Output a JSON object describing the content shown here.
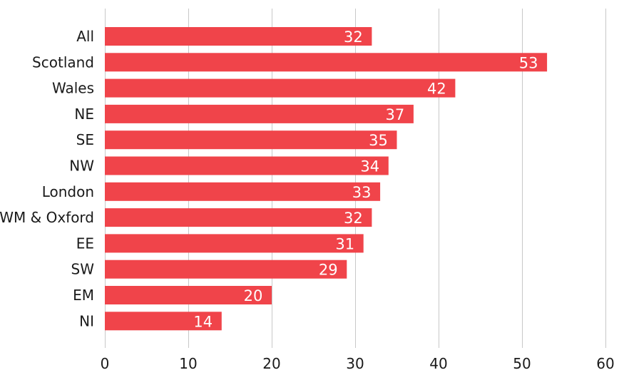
{
  "chart_data": {
    "type": "bar",
    "orientation": "horizontal",
    "categories": [
      "All",
      "Scotland",
      "Wales",
      "NE",
      "SE",
      "NW",
      "London",
      "WM & Oxford",
      "EE",
      "SW",
      "EM",
      "NI"
    ],
    "values": [
      32,
      53,
      42,
      37,
      35,
      34,
      33,
      32,
      31,
      29,
      20,
      14
    ],
    "xlim": [
      0,
      60
    ],
    "x_ticks": [
      "0",
      "10",
      "20",
      "30",
      "40",
      "50",
      "60"
    ],
    "title": "",
    "xlabel": "",
    "ylabel": "",
    "grid": "vertical",
    "legend": "none",
    "bar_color": "#f0444a",
    "label_color": "#ffffff"
  }
}
